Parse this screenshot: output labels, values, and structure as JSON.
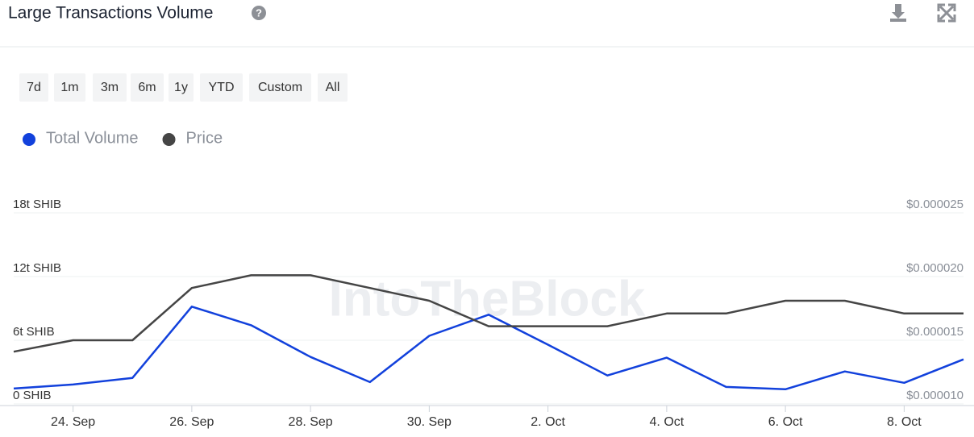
{
  "header": {
    "title": "Large Transactions Volume"
  },
  "range_buttons": [
    "7d",
    "1m",
    "3m",
    "6m",
    "1y",
    "YTD",
    "Custom",
    "All"
  ],
  "watermark": "IntoTheBlock",
  "chart_data": {
    "type": "line",
    "categories": [
      null,
      "24. Sep",
      null,
      "26. Sep",
      null,
      "28. Sep",
      null,
      "30. Sep",
      null,
      "2. Oct",
      null,
      "4. Oct",
      null,
      "6. Oct",
      null,
      "8. Oct",
      null
    ],
    "series": [
      {
        "name": "Total Volume",
        "color": "#1241dc",
        "values": [
          1.45,
          1.83,
          2.45,
          9.17,
          7.41,
          4.43,
          2.06,
          6.42,
          8.41,
          5.58,
          2.68,
          4.36,
          1.6,
          1.38,
          3.06,
          1.99,
          4.2
        ]
      },
      {
        "name": "Price",
        "color": "#454545",
        "axis": "y2",
        "values": [
          1.41e-05,
          1.5e-05,
          1.5e-05,
          1.91e-05,
          2.01e-05,
          2.01e-05,
          1.91e-05,
          1.81e-05,
          1.61e-05,
          1.61e-05,
          1.61e-05,
          1.71e-05,
          1.71e-05,
          1.81e-05,
          1.81e-05,
          1.71e-05,
          1.71e-05
        ]
      }
    ],
    "ylim": [
      0,
      18
    ],
    "yticks": [
      {
        "value": 0,
        "label": "0 SHIB"
      },
      {
        "value": 6,
        "label": "6t SHIB"
      },
      {
        "value": 12,
        "label": "12t SHIB"
      },
      {
        "value": 18,
        "label": "18t SHIB"
      }
    ],
    "y2lim": [
      1e-05,
      2.5e-05
    ],
    "y2ticks": [
      {
        "value": 1e-05,
        "label": "$0.000010"
      },
      {
        "value": 1.5e-05,
        "label": "$0.000015"
      },
      {
        "value": 2e-05,
        "label": "$0.000020"
      },
      {
        "value": 2.5e-05,
        "label": "$0.000025"
      }
    ],
    "grid": true
  }
}
